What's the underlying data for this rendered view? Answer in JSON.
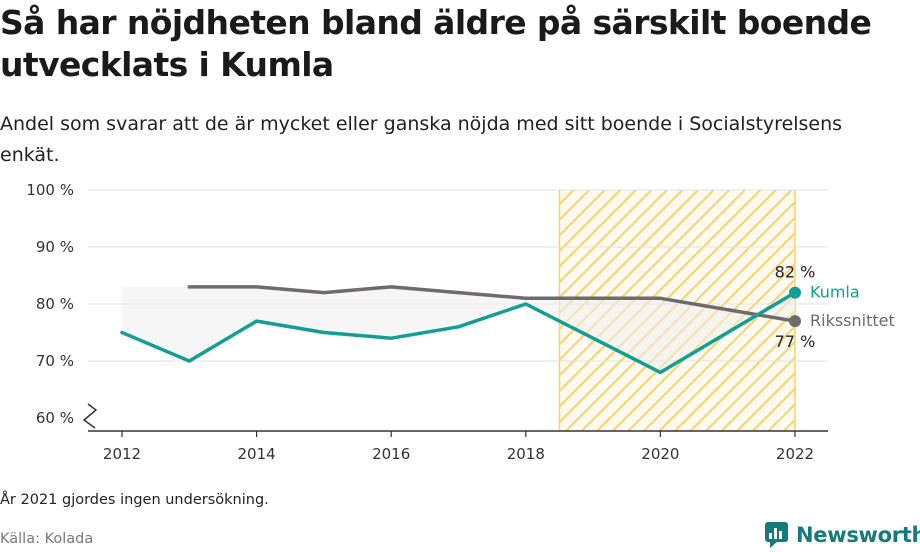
{
  "title": "Så har nöjdheten bland äldre på särskilt boende utvecklats i Kumla",
  "subtitle": "Andel som svarar att de är mycket eller ganska nöjda med sitt boende i Socialstyrelsens enkät.",
  "footnote": "År 2021 gjordes ingen undersökning.",
  "source": "Källa: Kolada",
  "brand": "Newsworthy",
  "colors": {
    "kumla": "#139e94",
    "riks": "#6e6a6e",
    "highlight": "#f7d36b",
    "grid": "#e2e2e2"
  },
  "chart_data": {
    "type": "line",
    "x": [
      2012,
      2013,
      2014,
      2015,
      2016,
      2017,
      2018,
      2020,
      2022
    ],
    "series": [
      {
        "name": "Kumla",
        "values": [
          75,
          70,
          77,
          75,
          74,
          76,
          80,
          68,
          82
        ]
      },
      {
        "name": "Rikssnittet",
        "values": [
          null,
          83,
          83,
          82,
          83,
          82,
          81,
          81,
          77
        ]
      }
    ],
    "end_labels": {
      "kumla": "82 %",
      "riks": "77 %"
    },
    "xlim": [
      2012,
      2022
    ],
    "ylim": [
      60,
      100
    ],
    "yticks": [
      {
        "v": 100,
        "label": "100 %"
      },
      {
        "v": 90,
        "label": "90 %"
      },
      {
        "v": 80,
        "label": "80 %"
      },
      {
        "v": 70,
        "label": "70 %"
      },
      {
        "v": 60,
        "label": "60 %"
      }
    ],
    "xticks": [
      {
        "v": 2012,
        "label": "2012"
      },
      {
        "v": 2014,
        "label": "2014"
      },
      {
        "v": 2016,
        "label": "2016"
      },
      {
        "v": 2018,
        "label": "2018"
      },
      {
        "v": 2020,
        "label": "2020"
      },
      {
        "v": 2022,
        "label": "2022"
      }
    ],
    "highlight_range": [
      2018.5,
      2022
    ],
    "grid": true,
    "axis_break": true
  }
}
